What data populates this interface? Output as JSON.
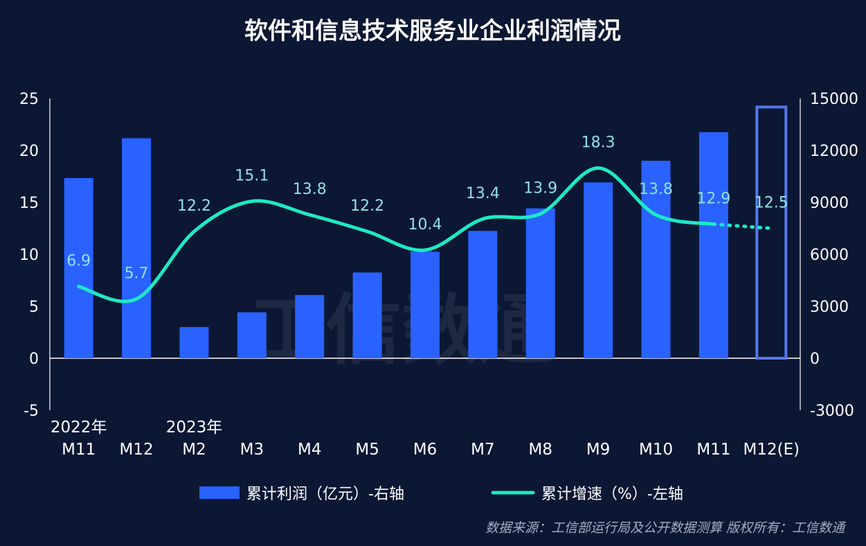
{
  "colors": {
    "background": "#0b1733",
    "bar": "#2962ff",
    "estimate_outline": "#5577ee",
    "line": "#1de9c5",
    "data_label": "#8fe3e3",
    "axis": "#ffffff",
    "source_text": "#a6aec4"
  },
  "watermark": "工信数通",
  "source_note": "数据来源：工信部运行局及公开数据测算  版权所有：工信数通",
  "chart_data": {
    "type": "bar",
    "title": "软件和信息技术服务业企业利润情况",
    "categories": [
      "M11",
      "M12",
      "M2",
      "M3",
      "M4",
      "M5",
      "M6",
      "M7",
      "M8",
      "M9",
      "M10",
      "M11",
      "M12(E)"
    ],
    "year_labels": [
      {
        "index": 0,
        "text": "2022年"
      },
      {
        "index": 2,
        "text": "2023年"
      }
    ],
    "left_axis": {
      "ylim": [
        -5,
        25
      ],
      "ticks": [
        "25",
        "20",
        "15",
        "10",
        "5",
        "0",
        "-5"
      ],
      "tick_values": [
        25,
        20,
        15,
        10,
        5,
        0,
        -5
      ]
    },
    "right_axis": {
      "ylim": [
        -3000,
        15000
      ],
      "ticks": [
        "15000",
        "12000",
        "9000",
        "6000",
        "3000",
        "0",
        "-3000"
      ],
      "tick_values": [
        15000,
        12000,
        9000,
        6000,
        3000,
        0,
        -3000
      ]
    },
    "series": [
      {
        "name": "累计利润（亿元）-右轴",
        "type": "bar",
        "axis": "right",
        "values": [
          10400,
          12700,
          1800,
          2650,
          3650,
          4950,
          6150,
          7350,
          8650,
          10150,
          11400,
          13050,
          14500
        ],
        "estimated_last": true
      },
      {
        "name": "累计增速（%）-左轴",
        "type": "line",
        "axis": "left",
        "values": [
          6.9,
          5.7,
          12.2,
          15.1,
          13.8,
          12.2,
          10.4,
          13.4,
          13.9,
          18.3,
          13.8,
          12.9,
          12.5
        ],
        "labels": [
          "6.9",
          "5.7",
          "12.2",
          "15.1",
          "13.8",
          "12.2",
          "10.4",
          "13.4",
          "13.9",
          "18.3",
          "13.8",
          "12.9",
          "12.5"
        ],
        "estimated_last": true
      }
    ],
    "legend": [
      "累计利润（亿元）-右轴",
      "累计增速（%）-左轴"
    ],
    "legend_position": "bottom",
    "grid": false
  }
}
